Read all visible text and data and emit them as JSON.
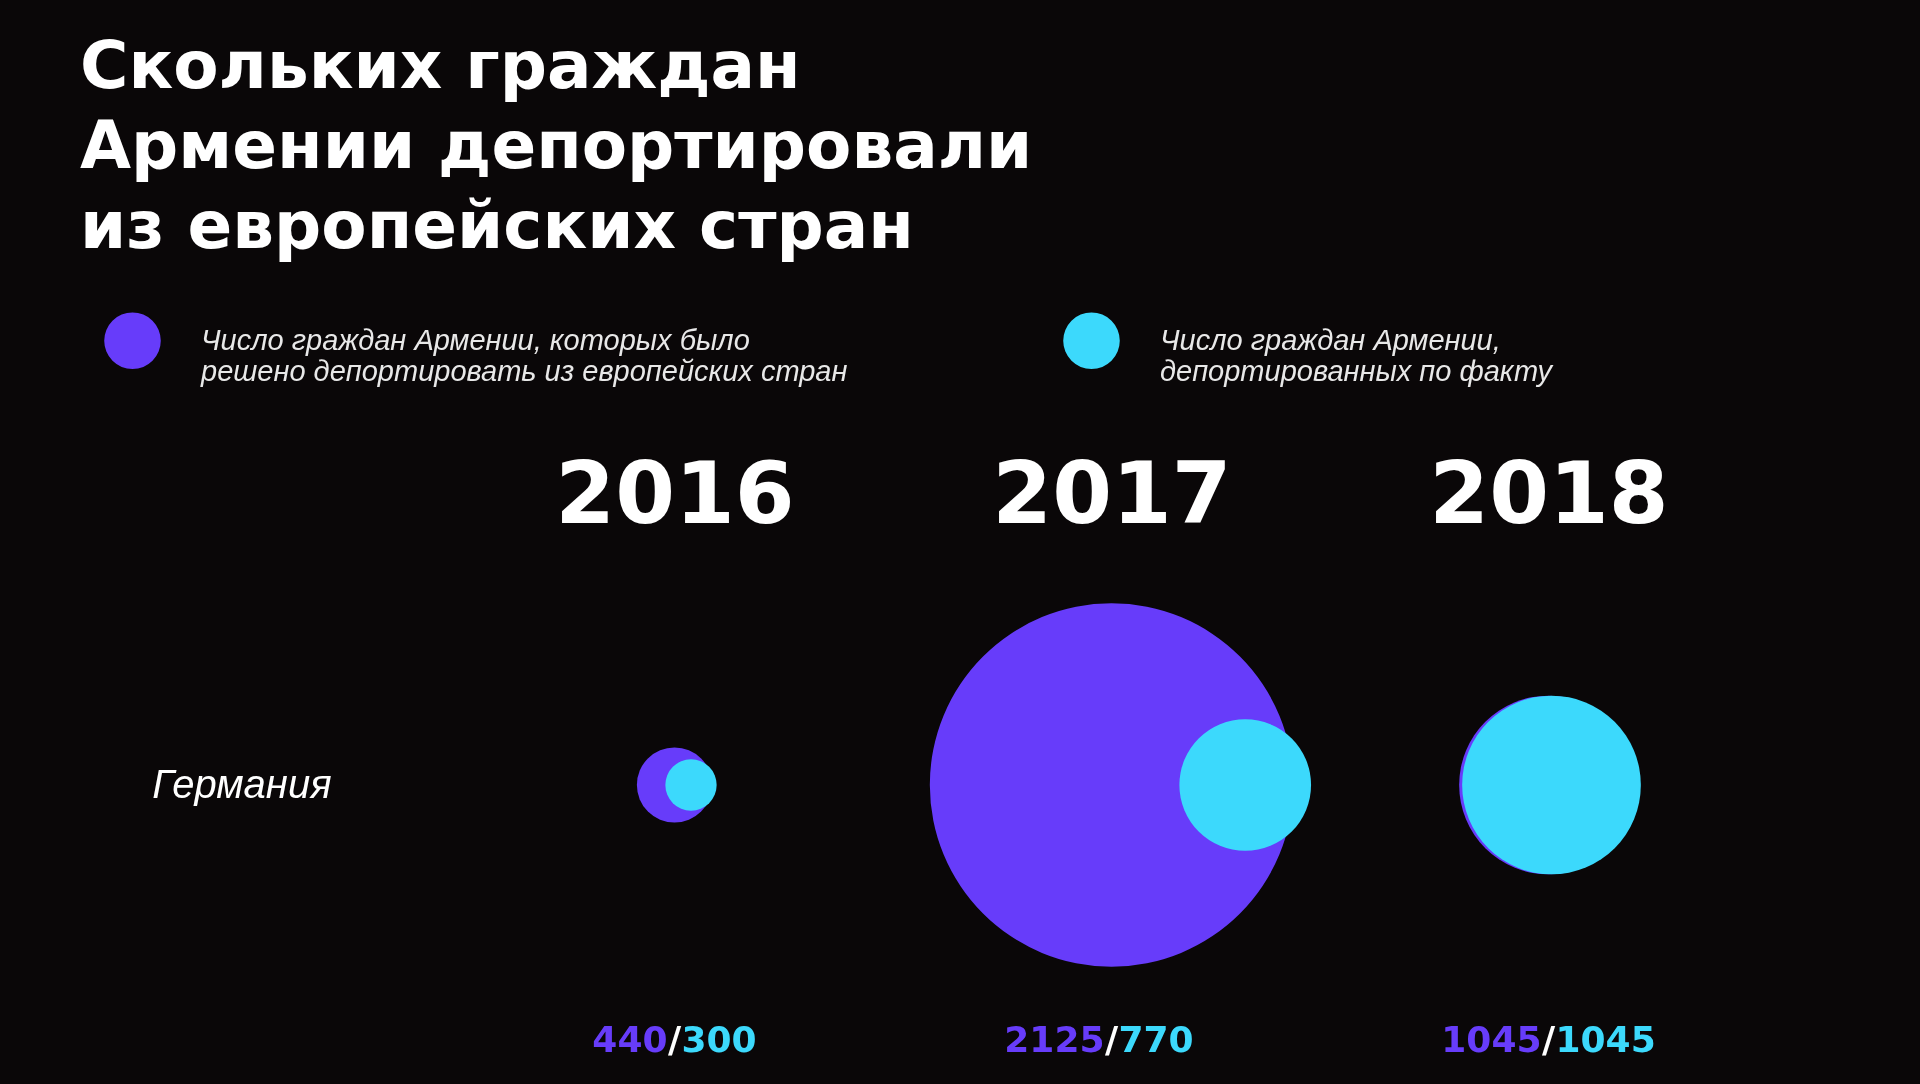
{
  "chart_data": {
    "type": "other",
    "title": "Скольких граждан Армении депортировали из европейских стран",
    "categories": [
      "2016",
      "2017",
      "2018"
    ],
    "y_categories": [
      "Германия"
    ],
    "series": [
      {
        "name": "Число граждан Армении, которых было решено депортировать из европейских стран",
        "color": "#673cfa",
        "values": [
          440,
          2125,
          1045
        ]
      },
      {
        "name": "Число граждан Армении, депортированных по факту",
        "color": "#3cd9fc",
        "values": [
          300,
          770,
          1045
        ]
      }
    ],
    "data_labels": true,
    "legend": "top",
    "annotations": [
      "/",
      "/",
      "/"
    ]
  }
}
